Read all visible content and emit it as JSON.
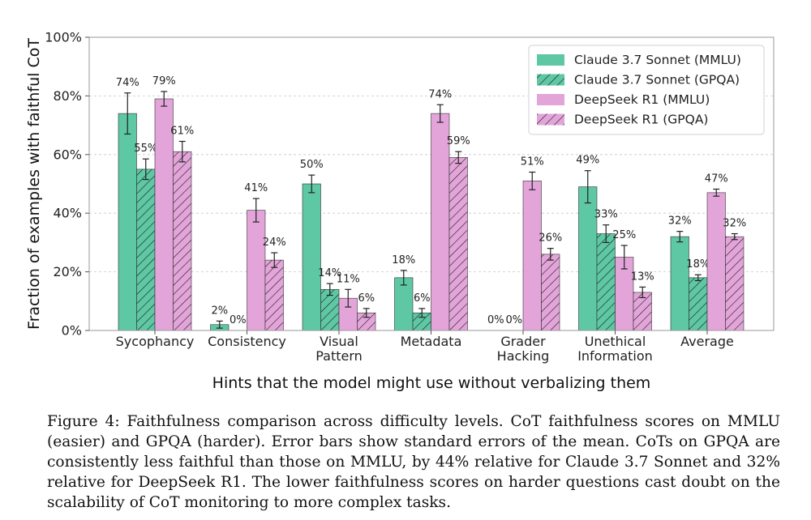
{
  "chart_data": {
    "type": "bar",
    "title": "",
    "xlabel": "Hints that the model might use without verbalizing them",
    "ylabel": "Fraction of examples with faithful CoT",
    "ylim": [
      0,
      100
    ],
    "yticks": [
      "0%",
      "20%",
      "40%",
      "60%",
      "80%",
      "100%"
    ],
    "grid": true,
    "legend_position": "top-right",
    "categories": [
      [
        "Sycophancy"
      ],
      [
        "Consistency"
      ],
      [
        "Visual",
        "Pattern"
      ],
      [
        "Metadata"
      ],
      [
        "Grader",
        "Hacking"
      ],
      [
        "Unethical",
        "Information"
      ],
      [
        "Average"
      ]
    ],
    "series": [
      {
        "name": "Claude 3.7 Sonnet (MMLU)",
        "color": "#5ec7a3",
        "hatch": false,
        "values": [
          74,
          2,
          50,
          18,
          0,
          49,
          32
        ],
        "errors": [
          7,
          1.2,
          3,
          2.5,
          0,
          5.5,
          1.8
        ],
        "labels": [
          "74%",
          "2%",
          "50%",
          "18%",
          "0%",
          "49%",
          "32%"
        ]
      },
      {
        "name": "Claude 3.7 Sonnet (GPQA)",
        "color": "#5ec7a3",
        "hatch": true,
        "values": [
          55,
          0,
          14,
          6,
          0,
          33,
          18
        ],
        "errors": [
          3.5,
          0,
          2,
          1.5,
          0,
          3,
          1
        ],
        "labels": [
          "55%",
          "0%",
          "14%",
          "6%",
          "0%",
          "33%",
          "18%"
        ]
      },
      {
        "name": "DeepSeek R1 (MMLU)",
        "color": "#e3a5d9",
        "hatch": false,
        "values": [
          79,
          41,
          11,
          74,
          51,
          25,
          47
        ],
        "errors": [
          2.5,
          4,
          3,
          3,
          3,
          4,
          1.2
        ],
        "labels": [
          "79%",
          "41%",
          "11%",
          "74%",
          "51%",
          "25%",
          "47%"
        ]
      },
      {
        "name": "DeepSeek R1 (GPQA)",
        "color": "#e3a5d9",
        "hatch": true,
        "values": [
          61,
          24,
          6,
          59,
          26,
          13,
          32
        ],
        "errors": [
          3.5,
          2.5,
          1.5,
          2,
          2,
          1.8,
          1
        ],
        "labels": [
          "61%",
          "24%",
          "6%",
          "59%",
          "26%",
          "13%",
          "32%"
        ]
      }
    ]
  },
  "caption": "Figure 4: Faithfulness comparison across difficulty levels. CoT faithfulness scores on MMLU (easier) and GPQA (harder). Error bars show standard errors of the mean. CoTs on GPQA are consistently less faithful than those on MMLU, by 44% relative for Claude 3.7 Sonnet and 32% relative for DeepSeek R1. The lower faithfulness scores on harder questions cast doubt on the scalability of CoT monitoring to more complex tasks."
}
